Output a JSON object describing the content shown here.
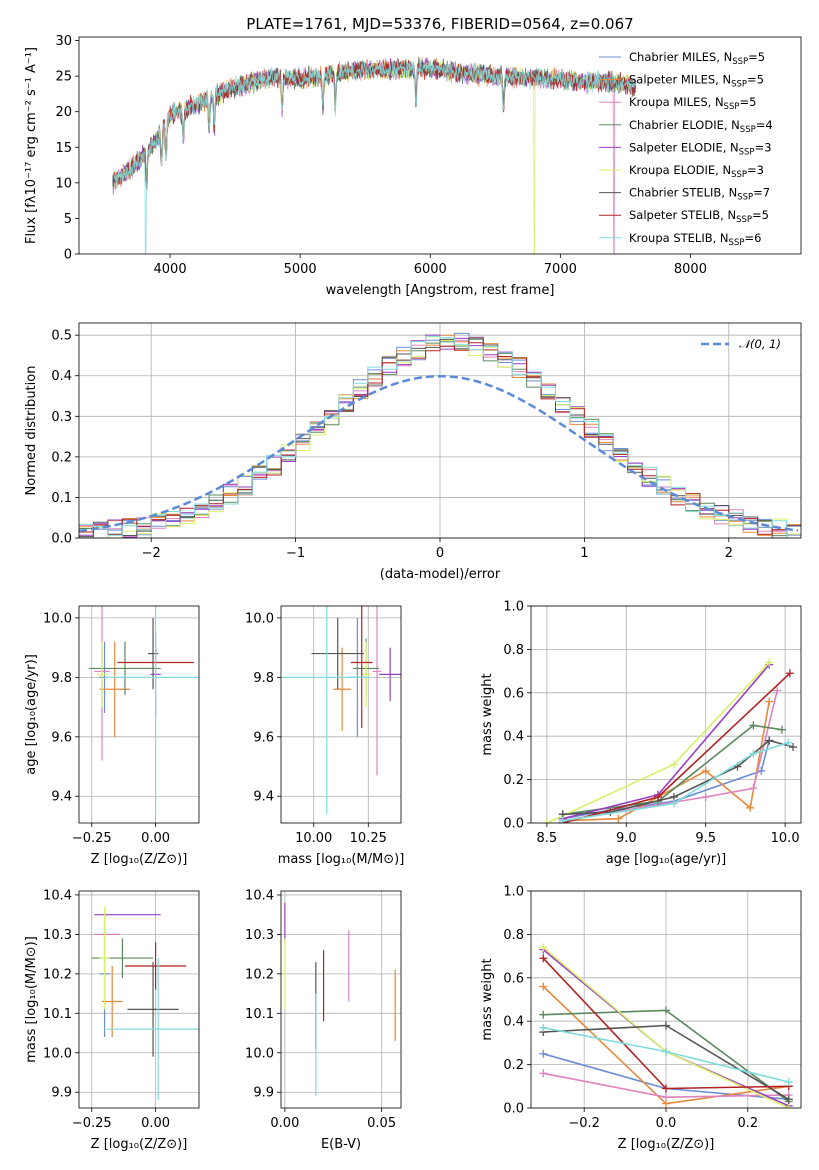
{
  "palette": [
    "#6b8ed6",
    "#e58a3a",
    "#e082c0",
    "#5b8a5e",
    "#9a3fc4",
    "#d9f06a",
    "#555555",
    "#b22222",
    "#7fdcdc"
  ],
  "chart_data": [
    {
      "id": "spectrum",
      "type": "line",
      "title": "PLATE=1761, MJD=53376, FIBERID=0564, z=0.067",
      "xlabel": "wavelength [Angstrom, rest frame]",
      "ylabel": "Flux [fλ10⁻¹⁷ erg cm⁻² s⁻¹ A⁻¹]",
      "xlim": [
        3300,
        8850
      ],
      "ylim": [
        0,
        30.5
      ],
      "xticks": [
        4000,
        5000,
        6000,
        7000,
        8000
      ],
      "yticks": [
        0,
        5,
        10,
        15,
        20,
        25,
        30
      ],
      "grid": false,
      "legend_position": "upper-right",
      "continuum_x": [
        3560,
        3700,
        3900,
        4000,
        4200,
        4500,
        4800,
        5000,
        5300,
        5600,
        6000,
        6500,
        7000,
        7500,
        7700,
        8000,
        8300,
        8600
      ],
      "continuum_y": [
        10,
        12,
        16,
        19.5,
        21,
        23.5,
        25,
        24.5,
        25.5,
        26,
        26,
        25,
        24.5,
        24,
        22.5,
        22.5,
        21.5,
        19.5
      ],
      "series": [
        {
          "name": "Chabrier MILES, N",
          "sub": "SSP",
          "suffix": "=5",
          "color": "#6b8ed6"
        },
        {
          "name": "Salpeter MILES, N",
          "sub": "SSP",
          "suffix": "=5",
          "color": "#e58a3a"
        },
        {
          "name": "Kroupa MILES, N",
          "sub": "SSP",
          "suffix": "=5",
          "color": "#e082c0"
        },
        {
          "name": "Chabrier ELODIE, N",
          "sub": "SSP",
          "suffix": "=4",
          "color": "#5b8a5e"
        },
        {
          "name": "Salpeter ELODIE, N",
          "sub": "SSP",
          "suffix": "=3",
          "color": "#9a3fc4"
        },
        {
          "name": "Kroupa ELODIE, N",
          "sub": "SSP",
          "suffix": "=3",
          "color": "#d9f06a"
        },
        {
          "name": "Chabrier STELIB, N",
          "sub": "SSP",
          "suffix": "=7",
          "color": "#555555"
        },
        {
          "name": "Salpeter STELIB, N",
          "sub": "SSP",
          "suffix": "=5",
          "color": "#b22222"
        },
        {
          "name": "Kroupa STELIB, N",
          "sub": "SSP",
          "suffix": "=6",
          "color": "#7fdcdc"
        }
      ]
    },
    {
      "id": "residuals",
      "type": "line",
      "xlabel": "(data-model)/error",
      "ylabel": "Normed distribution",
      "xlim": [
        -2.5,
        2.5
      ],
      "ylim": [
        0,
        0.53
      ],
      "xticks": [
        -2,
        -1,
        0,
        1,
        2
      ],
      "yticks": [
        0.0,
        0.1,
        0.2,
        0.3,
        0.4,
        0.5
      ],
      "grid": true,
      "legend_position": "upper-right",
      "normal_label": "𝒩(0, 1)",
      "normal_color": "#5b8ad6",
      "bin_width": 0.1
    },
    {
      "id": "age-vs-z",
      "type": "scatter",
      "xlabel": "Z [log₁₀(Z/Z⊙)]",
      "ylabel": "age  [log₁₀(age/yr)]",
      "xlim": [
        -0.3,
        0.17
      ],
      "ylim": [
        9.31,
        10.04
      ],
      "xticks": [
        -0.25,
        0.0
      ],
      "yticks": [
        9.4,
        9.6,
        9.8,
        10.0
      ],
      "grid": true,
      "points": [
        {
          "x": -0.2,
          "y": 9.8,
          "xerr": 0.02,
          "yerr": 0.12,
          "color": "#6b8ed6"
        },
        {
          "x": -0.16,
          "y": 9.76,
          "xerr": 0.06,
          "yerr": 0.16,
          "color": "#e58a3a"
        },
        {
          "x": -0.21,
          "y": 9.82,
          "xerr": 0.03,
          "yerr": 0.3,
          "color": "#e082c0"
        },
        {
          "x": -0.12,
          "y": 9.83,
          "xerr": 0.14,
          "yerr": 0.09,
          "color": "#5b8a5e"
        },
        {
          "x": 0.0,
          "y": 9.81,
          "xerr": 0.02,
          "yerr": 0.14,
          "color": "#9a3fc4"
        },
        {
          "x": -0.21,
          "y": 9.81,
          "xerr": 0.02,
          "yerr": 0.11,
          "color": "#d9f06a"
        },
        {
          "x": -0.01,
          "y": 9.88,
          "xerr": 0.02,
          "yerr": 0.12,
          "color": "#555555"
        },
        {
          "x": 0.0,
          "y": 9.85,
          "xerr": 0.15,
          "yerr": 0.0,
          "color": "#b22222"
        },
        {
          "x": 0.0,
          "y": 9.8,
          "xerr": 0.2,
          "yerr": 0.46,
          "color": "#7fdcdc"
        }
      ]
    },
    {
      "id": "age-vs-mass",
      "type": "scatter",
      "xlabel": "mass [log₁₀(M/M⊙)]",
      "ylabel": "",
      "xlim": [
        9.85,
        10.4
      ],
      "ylim": [
        9.31,
        10.04
      ],
      "xticks": [
        10.0,
        10.25
      ],
      "yticks": [
        9.4,
        9.6,
        9.8,
        10.0
      ],
      "grid": true,
      "points": [
        {
          "x": 10.2,
          "y": 9.8,
          "xerr": 0.04,
          "yerr": 0.2,
          "color": "#6b8ed6"
        },
        {
          "x": 10.13,
          "y": 9.76,
          "xerr": 0.04,
          "yerr": 0.14,
          "color": "#e58a3a"
        },
        {
          "x": 10.29,
          "y": 9.82,
          "xerr": 0.02,
          "yerr": 0.35,
          "color": "#e082c0"
        },
        {
          "x": 10.24,
          "y": 9.83,
          "xerr": 0.06,
          "yerr": 0.1,
          "color": "#5b8a5e"
        },
        {
          "x": 10.35,
          "y": 9.81,
          "xerr": 0.05,
          "yerr": 0.09,
          "color": "#9a3fc4"
        },
        {
          "x": 10.24,
          "y": 9.81,
          "xerr": 0.02,
          "yerr": 0.11,
          "color": "#d9f06a"
        },
        {
          "x": 10.11,
          "y": 9.88,
          "xerr": 0.12,
          "yerr": 0.12,
          "color": "#555555"
        },
        {
          "x": 10.22,
          "y": 9.85,
          "xerr": 0.05,
          "yerr": 0.22,
          "color": "#b22222"
        },
        {
          "x": 10.06,
          "y": 9.8,
          "xerr": 0.2,
          "yerr": 0.46,
          "color": "#7fdcdc"
        }
      ]
    },
    {
      "id": "mass-weight-vs-age",
      "type": "line",
      "xlabel": "age  [log₁₀(age/yr)]",
      "ylabel": "mass weight",
      "xlim": [
        8.4,
        10.1
      ],
      "ylim": [
        0,
        1.0
      ],
      "xticks": [
        8.5,
        9.0,
        9.5,
        10.0
      ],
      "yticks": [
        0.0,
        0.2,
        0.4,
        0.6,
        0.8,
        1.0
      ],
      "grid": true,
      "series": [
        {
          "color": "#6b8ed6",
          "x": [
            8.6,
            8.9,
            9.3,
            9.85,
            9.9
          ],
          "y": [
            0.02,
            0.06,
            0.1,
            0.24,
            0.38
          ]
        },
        {
          "color": "#e58a3a",
          "x": [
            8.6,
            8.95,
            9.5,
            9.78,
            9.9
          ],
          "y": [
            0.01,
            0.02,
            0.24,
            0.07,
            0.56
          ]
        },
        {
          "color": "#e082c0",
          "x": [
            8.6,
            9.0,
            9.5,
            9.8,
            9.95
          ],
          "y": [
            0.01,
            0.06,
            0.12,
            0.16,
            0.61
          ]
        },
        {
          "color": "#5b8a5e",
          "x": [
            8.6,
            9.2,
            9.8,
            9.98
          ],
          "y": [
            0.04,
            0.1,
            0.45,
            0.43
          ]
        },
        {
          "color": "#9a3fc4",
          "x": [
            8.6,
            9.2,
            9.9
          ],
          "y": [
            0.02,
            0.13,
            0.73
          ]
        },
        {
          "color": "#d9f06a",
          "x": [
            8.5,
            9.3,
            9.9
          ],
          "y": [
            0.0,
            0.27,
            0.74
          ]
        },
        {
          "color": "#555555",
          "x": [
            8.6,
            8.9,
            9.3,
            9.7,
            9.9,
            10.05
          ],
          "y": [
            0.04,
            0.05,
            0.12,
            0.26,
            0.38,
            0.35
          ]
        },
        {
          "color": "#b22222",
          "x": [
            8.6,
            9.2,
            10.03
          ],
          "y": [
            0.0,
            0.12,
            0.69
          ]
        },
        {
          "color": "#7fdcdc",
          "x": [
            8.6,
            9.3,
            9.8,
            10.02
          ],
          "y": [
            0.01,
            0.09,
            0.32,
            0.37
          ]
        }
      ]
    },
    {
      "id": "mass-vs-z",
      "type": "scatter",
      "xlabel": "Z [log₁₀(Z/Z⊙)]",
      "ylabel": "mass [log₁₀(M/M⊙)]",
      "xlim": [
        -0.3,
        0.17
      ],
      "ylim": [
        9.86,
        10.41
      ],
      "xticks": [
        -0.25,
        0.0
      ],
      "yticks": [
        9.9,
        10.0,
        10.1,
        10.2,
        10.3,
        10.4
      ],
      "grid": true,
      "points": [
        {
          "x": -0.2,
          "y": 10.2,
          "xerr": 0.02,
          "yerr": 0.16,
          "color": "#6b8ed6"
        },
        {
          "x": -0.17,
          "y": 10.13,
          "xerr": 0.04,
          "yerr": 0.09,
          "color": "#e58a3a"
        },
        {
          "x": -0.19,
          "y": 10.3,
          "xerr": 0.05,
          "yerr": 0.0,
          "color": "#e082c0"
        },
        {
          "x": -0.13,
          "y": 10.24,
          "xerr": 0.12,
          "yerr": 0.05,
          "color": "#5b8a5e"
        },
        {
          "x": -0.11,
          "y": 10.35,
          "xerr": 0.13,
          "yerr": 0.0,
          "color": "#9a3fc4"
        },
        {
          "x": -0.2,
          "y": 10.24,
          "xerr": 0.02,
          "yerr": 0.13,
          "color": "#d9f06a"
        },
        {
          "x": -0.01,
          "y": 10.11,
          "xerr": 0.1,
          "yerr": 0.12,
          "color": "#555555"
        },
        {
          "x": 0.0,
          "y": 10.22,
          "xerr": 0.12,
          "yerr": 0.06,
          "color": "#b22222"
        },
        {
          "x": 0.01,
          "y": 10.06,
          "xerr": 0.2,
          "yerr": 0.18,
          "color": "#7fdcdc"
        }
      ]
    },
    {
      "id": "mass-vs-ebv",
      "type": "scatter",
      "xlabel": "E(B-V)",
      "ylabel": "",
      "xlim": [
        -0.002,
        0.06
      ],
      "ylim": [
        9.86,
        10.41
      ],
      "xticks": [
        0.0,
        0.05
      ],
      "yticks": [
        9.9,
        10.0,
        10.1,
        10.2,
        10.3,
        10.4
      ],
      "grid": true,
      "points": [
        {
          "x": 0.0,
          "y": 10.33,
          "xerr": 0.0,
          "yerr": 0.05,
          "color": "#9a3fc4"
        },
        {
          "x": 0.0,
          "y": 10.2,
          "xerr": 0.0,
          "yerr": 0.09,
          "color": "#d9f06a"
        },
        {
          "x": 0.016,
          "y": 10.12,
          "xerr": 0.0,
          "yerr": 0.11,
          "color": "#555555"
        },
        {
          "x": 0.016,
          "y": 10.02,
          "xerr": 0.0,
          "yerr": 0.13,
          "color": "#7fdcdc"
        },
        {
          "x": 0.02,
          "y": 10.17,
          "xerr": 0.0,
          "yerr": 0.09,
          "color": "#b22222"
        },
        {
          "x": 0.033,
          "y": 10.22,
          "xerr": 0.0,
          "yerr": 0.09,
          "color": "#e082c0"
        },
        {
          "x": 0.057,
          "y": 10.12,
          "xerr": 0.0,
          "yerr": 0.09,
          "color": "#e58a3a"
        }
      ]
    },
    {
      "id": "mass-weight-vs-z",
      "type": "line",
      "xlabel": "Z [log₁₀(Z/Z⊙)]",
      "ylabel": "mass weight",
      "xlim": [
        -0.33,
        0.33
      ],
      "ylim": [
        0,
        1.0
      ],
      "xticks": [
        -0.2,
        0.0,
        0.2
      ],
      "yticks": [
        0.0,
        0.2,
        0.4,
        0.6,
        0.8,
        1.0
      ],
      "grid": true,
      "series": [
        {
          "color": "#6b8ed6",
          "x": [
            -0.3,
            0.0,
            0.3
          ],
          "y": [
            0.25,
            0.09,
            0.04
          ]
        },
        {
          "color": "#e58a3a",
          "x": [
            -0.3,
            0.0,
            0.3
          ],
          "y": [
            0.56,
            0.02,
            0.1
          ]
        },
        {
          "color": "#e082c0",
          "x": [
            -0.3,
            0.0,
            0.3
          ],
          "y": [
            0.16,
            0.05,
            0.06
          ]
        },
        {
          "color": "#5b8a5e",
          "x": [
            -0.3,
            0.0,
            0.3
          ],
          "y": [
            0.43,
            0.45,
            0.03
          ]
        },
        {
          "color": "#9a3fc4",
          "x": [
            -0.3,
            0.0,
            0.3
          ],
          "y": [
            0.73,
            0.26,
            0.01
          ]
        },
        {
          "color": "#d9f06a",
          "x": [
            -0.3,
            0.0,
            0.3
          ],
          "y": [
            0.74,
            0.26,
            0.0
          ]
        },
        {
          "color": "#555555",
          "x": [
            -0.3,
            0.0,
            0.3
          ],
          "y": [
            0.35,
            0.38,
            0.04
          ]
        },
        {
          "color": "#b22222",
          "x": [
            -0.3,
            0.0,
            0.3
          ],
          "y": [
            0.69,
            0.09,
            0.1
          ]
        },
        {
          "color": "#7fdcdc",
          "x": [
            -0.3,
            0.0,
            0.3
          ],
          "y": [
            0.37,
            0.26,
            0.12
          ]
        }
      ]
    }
  ]
}
